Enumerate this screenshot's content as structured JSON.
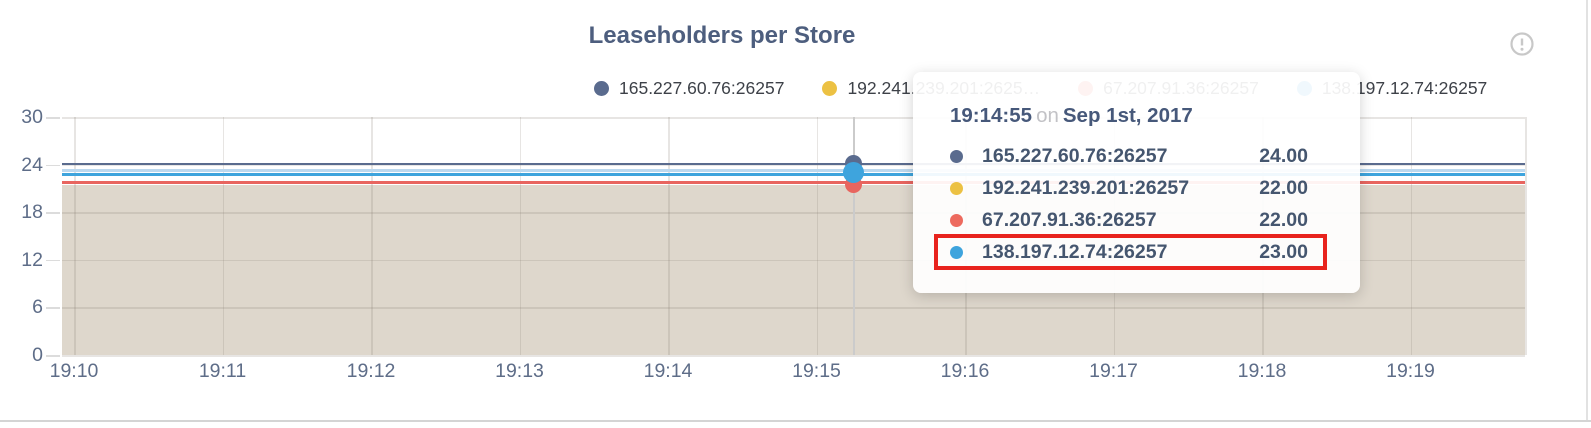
{
  "header": {
    "title": "Leaseholders per Store",
    "info_icon": "exclamation-circle"
  },
  "legend": {
    "items": [
      {
        "label": "165.227.60.76:26257",
        "color": "#5a6b8e"
      },
      {
        "label": "192.241.239.201:2625…",
        "color": "#ecc143"
      },
      {
        "label": "67.207.91.36:26257",
        "color": "#ed6a5e"
      },
      {
        "label": "138.197.12.74:26257",
        "color": "#3ea4dd"
      }
    ]
  },
  "chart_data": {
    "type": "line",
    "title": "Leaseholders per Store",
    "x_ticks": [
      "19:10",
      "19:11",
      "19:12",
      "19:13",
      "19:14",
      "19:15",
      "19:16",
      "19:17",
      "19:18",
      "19:19"
    ],
    "y_ticks": [
      0,
      6,
      12,
      18,
      24,
      30
    ],
    "ylim": [
      0,
      30
    ],
    "grid": true,
    "legend_position": "top",
    "area_fill_color": "#ded7cc",
    "series": [
      {
        "name": "165.227.60.76:26257",
        "color": "#5a6b8e",
        "value": 24.0
      },
      {
        "name": "192.241.239.201:26257",
        "color": "#ecc143",
        "value": 22.0
      },
      {
        "name": "67.207.91.36:26257",
        "color": "#e8655f",
        "value": 22.0
      },
      {
        "name": "138.197.12.74:26257",
        "color": "#3ea4dd",
        "value": 23.0
      }
    ],
    "note": "all series are flat (constant) across 19:10-19:19; hover point shown near 19:15"
  },
  "tooltip": {
    "time": "19:14:55",
    "conjunction": "on",
    "date": "Sep 1st, 2017",
    "rows": [
      {
        "label": "165.227.60.76:26257",
        "value": "24.00",
        "color": "#5a6b8e",
        "highlighted": false
      },
      {
        "label": "192.241.239.201:26257",
        "value": "22.00",
        "color": "#ecc143",
        "highlighted": false
      },
      {
        "label": "67.207.91.36:26257",
        "value": "22.00",
        "color": "#ed6a5e",
        "highlighted": false
      },
      {
        "label": "138.197.12.74:26257",
        "value": "23.00",
        "color": "#3ea4dd",
        "highlighted": true
      }
    ]
  }
}
